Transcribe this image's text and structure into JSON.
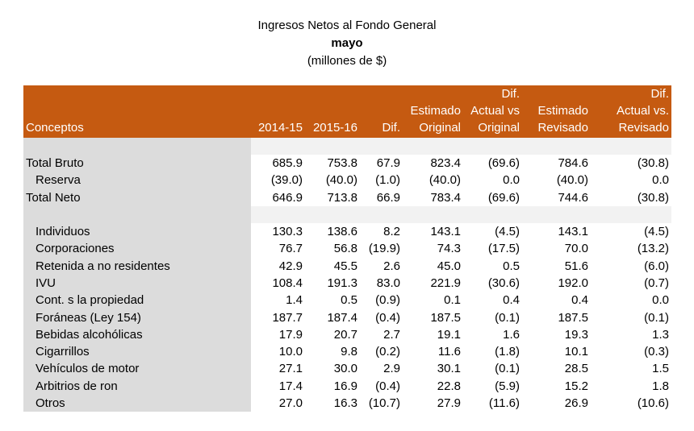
{
  "title": "Ingresos Netos al Fondo General",
  "subtitle": "mayo",
  "units": "(millones de $)",
  "header": {
    "concepts": "Conceptos",
    "y1": "2014-15",
    "y2": "2015-16",
    "dif": "Dif.",
    "est_orig_1": "Estimado",
    "est_orig_2": "Original",
    "dif_orig_1": "Dif.",
    "dif_orig_2": "Actual vs",
    "dif_orig_3": "Original",
    "est_rev_1": "Estimado",
    "est_rev_2": "Revisado",
    "dif_rev_1": "Dif.",
    "dif_rev_2": "Actual vs.",
    "dif_rev_3": "Revisado"
  },
  "rows": [
    {
      "label": "Total Bruto",
      "indent": 0,
      "values": [
        "685.9",
        "753.8",
        "67.9",
        "823.4",
        "(69.6)",
        "784.6",
        "(30.8)"
      ]
    },
    {
      "label": "Reserva",
      "indent": 1,
      "values": [
        "(39.0)",
        "(40.0)",
        "(1.0)",
        "(40.0)",
        "0.0",
        "(40.0)",
        "0.0"
      ]
    },
    {
      "label": "Total Neto",
      "indent": 0,
      "values": [
        "646.9",
        "713.8",
        "66.9",
        "783.4",
        "(69.6)",
        "744.6",
        "(30.8)"
      ]
    },
    {
      "label": "Individuos",
      "indent": 1,
      "values": [
        "130.3",
        "138.6",
        "8.2",
        "143.1",
        "(4.5)",
        "143.1",
        "(4.5)"
      ]
    },
    {
      "label": "Corporaciones",
      "indent": 1,
      "values": [
        "76.7",
        "56.8",
        "(19.9)",
        "74.3",
        "(17.5)",
        "70.0",
        "(13.2)"
      ]
    },
    {
      "label": "Retenida a no residentes",
      "indent": 1,
      "values": [
        "42.9",
        "45.5",
        "2.6",
        "45.0",
        "0.5",
        "51.6",
        "(6.0)"
      ]
    },
    {
      "label": "IVU",
      "indent": 1,
      "values": [
        "108.4",
        "191.3",
        "83.0",
        "221.9",
        "(30.6)",
        "192.0",
        "(0.7)"
      ]
    },
    {
      "label": "Cont. s la propiedad",
      "indent": 1,
      "values": [
        "1.4",
        "0.5",
        "(0.9)",
        "0.1",
        "0.4",
        "0.4",
        "0.0"
      ]
    },
    {
      "label": "Foráneas (Ley 154)",
      "indent": 1,
      "values": [
        "187.7",
        "187.4",
        "(0.4)",
        "187.5",
        "(0.1)",
        "187.5",
        "(0.1)"
      ]
    },
    {
      "label": "Bebidas alcohólicas",
      "indent": 1,
      "values": [
        "17.9",
        "20.7",
        "2.7",
        "19.1",
        "1.6",
        "19.3",
        "1.3"
      ]
    },
    {
      "label": "Cigarrillos",
      "indent": 1,
      "values": [
        "10.0",
        "9.8",
        "(0.2)",
        "11.6",
        "(1.8)",
        "10.1",
        "(0.3)"
      ]
    },
    {
      "label": "Vehículos de motor",
      "indent": 1,
      "values": [
        "27.1",
        "30.0",
        "2.9",
        "30.1",
        "(0.1)",
        "28.5",
        "1.5"
      ]
    },
    {
      "label": "Arbitrios de ron",
      "indent": 1,
      "values": [
        "17.4",
        "16.9",
        "(0.4)",
        "22.8",
        "(5.9)",
        "15.2",
        "1.8"
      ]
    },
    {
      "label": "Otros",
      "indent": 1,
      "values": [
        "27.0",
        "16.3",
        "(10.7)",
        "27.9",
        "(11.6)",
        "26.9",
        "(10.6)"
      ]
    }
  ]
}
